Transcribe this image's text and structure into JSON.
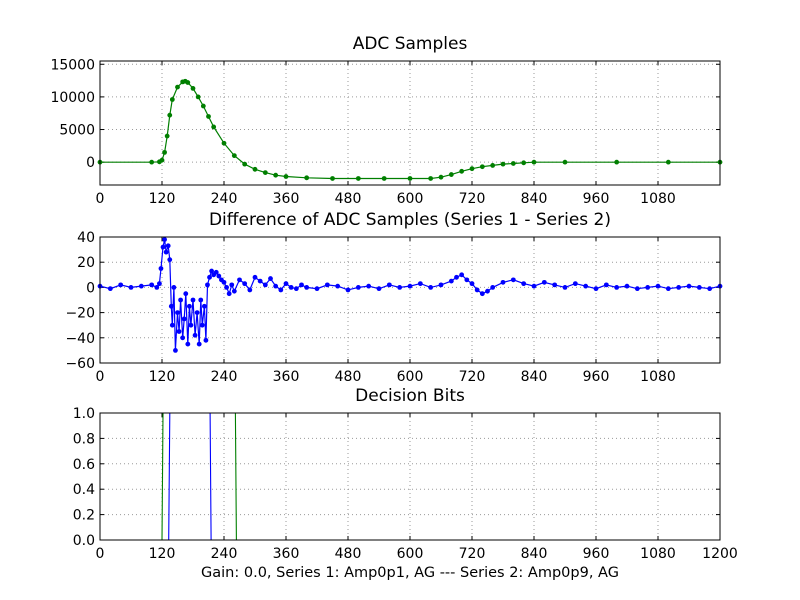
{
  "figure": {
    "caption": "Gain: 0.0, Series 1: Amp0p1, AG --- Series 2: Amp0p9, AG"
  },
  "chart_data": [
    {
      "id": "adc",
      "type": "line",
      "title": "ADC Samples",
      "xlabel": "",
      "ylabel": "",
      "xlim": [
        0,
        1200
      ],
      "ylim": [
        -3500,
        15500
      ],
      "grid": true,
      "xticks": [
        0,
        120,
        240,
        360,
        480,
        600,
        720,
        840,
        960,
        1080
      ],
      "xtick_labels": [
        "0",
        "120",
        "240",
        "360",
        "480",
        "600",
        "720",
        "840",
        "960",
        "1080"
      ],
      "yticks": [
        0,
        5000,
        10000,
        15000
      ],
      "ytick_labels": [
        "0",
        "5000",
        "10000",
        "15000"
      ],
      "series": [
        {
          "name": "Series 2",
          "color": "#007f00",
          "marker": "dot",
          "x": [
            0,
            100,
            115,
            120,
            125,
            130,
            135,
            140,
            150,
            160,
            165,
            170,
            180,
            190,
            200,
            210,
            220,
            240,
            260,
            280,
            300,
            320,
            340,
            360,
            400,
            450,
            500,
            550,
            600,
            640,
            660,
            680,
            700,
            720,
            740,
            760,
            780,
            800,
            820,
            840,
            900,
            1000,
            1100,
            1200
          ],
          "values": [
            0,
            0,
            50,
            300,
            1500,
            4000,
            7200,
            9600,
            11500,
            12300,
            12400,
            12200,
            11300,
            10000,
            8600,
            7000,
            5400,
            2900,
            1000,
            -300,
            -1100,
            -1600,
            -2000,
            -2200,
            -2400,
            -2500,
            -2500,
            -2500,
            -2500,
            -2500,
            -2300,
            -1900,
            -1400,
            -1000,
            -700,
            -500,
            -300,
            -200,
            -100,
            0,
            0,
            0,
            0,
            0
          ]
        }
      ]
    },
    {
      "id": "diff",
      "type": "line",
      "title": "Difference of ADC Samples (Series 1 - Series 2)",
      "xlabel": "",
      "ylabel": "",
      "xlim": [
        0,
        1200
      ],
      "ylim": [
        -60,
        40
      ],
      "grid": true,
      "xticks": [
        0,
        120,
        240,
        360,
        480,
        600,
        720,
        840,
        960,
        1080
      ],
      "xtick_labels": [
        "0",
        "120",
        "240",
        "360",
        "480",
        "600",
        "720",
        "840",
        "960",
        "1080"
      ],
      "yticks": [
        -60,
        -40,
        -20,
        0,
        20,
        40
      ],
      "ytick_labels": [
        "−60",
        "−40",
        "−20",
        "0",
        "20",
        "40"
      ],
      "series": [
        {
          "name": "Series 1 - Series 2",
          "color": "#0000ff",
          "marker": "dot",
          "x": [
            0,
            20,
            40,
            60,
            80,
            100,
            110,
            115,
            118,
            122,
            125,
            128,
            132,
            135,
            138,
            140,
            143,
            146,
            150,
            153,
            156,
            160,
            163,
            166,
            170,
            173,
            176,
            180,
            184,
            188,
            192,
            195,
            198,
            202,
            205,
            208,
            212,
            216,
            220,
            225,
            230,
            235,
            240,
            245,
            250,
            255,
            260,
            270,
            280,
            290,
            300,
            310,
            320,
            330,
            340,
            350,
            360,
            370,
            380,
            390,
            400,
            420,
            440,
            460,
            480,
            500,
            520,
            540,
            560,
            580,
            600,
            620,
            640,
            660,
            680,
            690,
            700,
            710,
            720,
            730,
            740,
            750,
            760,
            780,
            800,
            820,
            840,
            860,
            880,
            900,
            920,
            940,
            960,
            980,
            1000,
            1020,
            1040,
            1060,
            1080,
            1100,
            1120,
            1140,
            1160,
            1180,
            1200
          ],
          "values": [
            1,
            -1,
            2,
            0,
            1,
            2,
            0,
            3,
            15,
            32,
            38,
            28,
            33,
            22,
            -15,
            -30,
            0,
            -50,
            -20,
            -35,
            -10,
            -40,
            -25,
            -5,
            -45,
            -15,
            -30,
            -10,
            -38,
            -20,
            -45,
            -10,
            -30,
            -15,
            -42,
            2,
            8,
            13,
            10,
            12,
            9,
            6,
            4,
            0,
            -5,
            2,
            -3,
            6,
            3,
            -2,
            8,
            5,
            2,
            7,
            1,
            -2,
            3,
            0,
            -1,
            2,
            0,
            -1,
            2,
            1,
            -2,
            0,
            1,
            -1,
            2,
            0,
            1,
            3,
            0,
            2,
            5,
            8,
            10,
            6,
            3,
            -2,
            -5,
            -3,
            0,
            4,
            6,
            3,
            1,
            4,
            2,
            0,
            3,
            1,
            -1,
            2,
            0,
            1,
            -1,
            0,
            1,
            -1,
            0,
            1,
            0,
            -1,
            1
          ]
        }
      ]
    },
    {
      "id": "bits",
      "type": "line",
      "title": "Decision Bits",
      "xlabel": "",
      "ylabel": "",
      "xlim": [
        0,
        1200
      ],
      "ylim": [
        0,
        1
      ],
      "grid": true,
      "xticks": [
        0,
        120,
        240,
        360,
        480,
        600,
        720,
        840,
        960,
        1080,
        1200
      ],
      "xtick_labels": [
        "0",
        "120",
        "240",
        "360",
        "480",
        "600",
        "720",
        "840",
        "960",
        "1080",
        "1200"
      ],
      "yticks": [
        0,
        0.2,
        0.4,
        0.6,
        0.8,
        1.0
      ],
      "ytick_labels": [
        "0.0",
        "0.2",
        "0.4",
        "0.6",
        "0.8",
        "1.0"
      ],
      "series": [
        {
          "name": "Series 1",
          "color": "#0000ff",
          "marker": "none",
          "x": [
            0,
            133,
            135,
            213,
            215,
            1200
          ],
          "values": [
            0,
            0,
            1,
            1,
            0,
            0
          ]
        },
        {
          "name": "Series 2",
          "color": "#007f00",
          "marker": "none",
          "x": [
            0,
            120,
            122,
            262,
            264,
            1200
          ],
          "values": [
            0,
            0,
            1,
            1,
            0,
            0
          ]
        }
      ]
    }
  ]
}
